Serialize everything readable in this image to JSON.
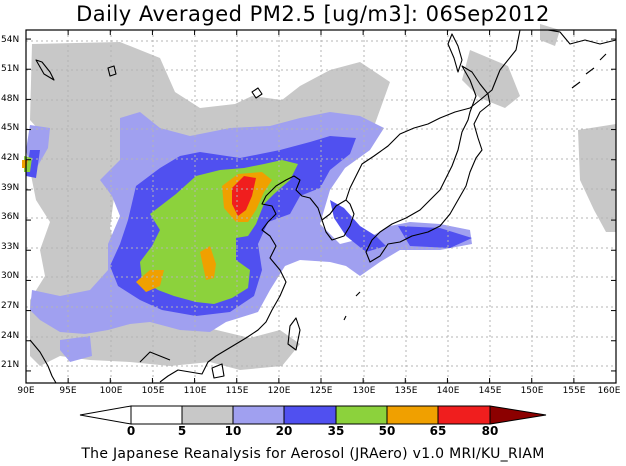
{
  "title": "Daily Averaged PM2.5 [ug/m3]: 06Sep2012",
  "footer": "The Japanese Reanalysis for Aerosol (JRAero) v1.0 MRI/KU_RIAM",
  "lat_labels": [
    "54N",
    "51N",
    "48N",
    "45N",
    "42N",
    "39N",
    "36N",
    "33N",
    "30N",
    "27N",
    "24N",
    "21N"
  ],
  "lat_values": [
    54,
    51,
    48,
    45,
    42,
    39,
    36,
    33,
    30,
    27,
    24,
    21
  ],
  "lon_labels": [
    "90E",
    "95E",
    "100E",
    "105E",
    "110E",
    "115E",
    "120E",
    "125E",
    "130E",
    "135E",
    "140E",
    "145E",
    "150E",
    "155E",
    "160E"
  ],
  "lon_values": [
    90,
    95,
    100,
    105,
    110,
    115,
    120,
    125,
    130,
    135,
    140,
    145,
    150,
    155,
    160
  ],
  "legend": {
    "ticks": [
      "0",
      "5",
      "10",
      "20",
      "35",
      "50",
      "65",
      "80"
    ],
    "colors": [
      "#ffffff",
      "#c8c8c8",
      "#a0a0f0",
      "#5050f0",
      "#8cd23c",
      "#f0a000",
      "#f01e1e",
      "#8c0000"
    ]
  },
  "map_colors": {
    "land_outline": "#000000",
    "grid": "#b4b4b4"
  }
}
